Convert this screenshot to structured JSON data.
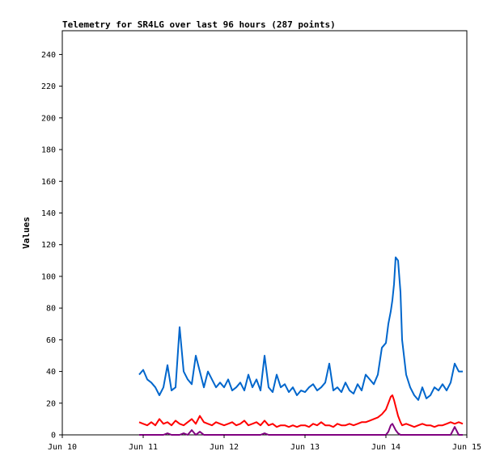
{
  "chart_data": {
    "type": "line",
    "title": "Telemetry for SR4LG over last 96 hours (287 points)",
    "xlabel": "",
    "ylabel": "Values",
    "x_ticks": [
      "Jun 10",
      "Jun 11",
      "Jun 12",
      "Jun 13",
      "Jun 14",
      "Jun 15"
    ],
    "y_ticks": [
      0,
      20,
      40,
      60,
      80,
      100,
      120,
      140,
      160,
      180,
      200,
      220,
      240
    ],
    "xlim": [
      0,
      5
    ],
    "ylim": [
      0,
      255
    ],
    "grid": false,
    "legend": "none",
    "series": [
      {
        "color": "#0066cc",
        "x": [
          0.95,
          1.0,
          1.05,
          1.1,
          1.15,
          1.2,
          1.25,
          1.3,
          1.35,
          1.4,
          1.45,
          1.5,
          1.55,
          1.6,
          1.65,
          1.7,
          1.75,
          1.8,
          1.85,
          1.9,
          1.95,
          2.0,
          2.05,
          2.1,
          2.15,
          2.2,
          2.25,
          2.3,
          2.35,
          2.4,
          2.45,
          2.5,
          2.55,
          2.6,
          2.65,
          2.7,
          2.75,
          2.8,
          2.85,
          2.9,
          2.95,
          3.0,
          3.05,
          3.1,
          3.15,
          3.2,
          3.25,
          3.3,
          3.35,
          3.4,
          3.45,
          3.5,
          3.55,
          3.6,
          3.65,
          3.7,
          3.75,
          3.8,
          3.85,
          3.9,
          3.95,
          4.0,
          4.03,
          4.06,
          4.08,
          4.1,
          4.12,
          4.15,
          4.18,
          4.2,
          4.25,
          4.3,
          4.35,
          4.4,
          4.45,
          4.5,
          4.55,
          4.6,
          4.65,
          4.7,
          4.75,
          4.8,
          4.85,
          4.9,
          4.95
        ],
        "y": [
          38,
          41,
          35,
          33,
          30,
          25,
          30,
          44,
          28,
          30,
          68,
          40,
          35,
          32,
          50,
          40,
          30,
          40,
          35,
          30,
          33,
          30,
          35,
          28,
          30,
          33,
          28,
          38,
          30,
          35,
          28,
          50,
          30,
          27,
          38,
          30,
          32,
          27,
          30,
          25,
          28,
          27,
          30,
          32,
          28,
          30,
          33,
          45,
          28,
          30,
          27,
          33,
          28,
          26,
          32,
          28,
          38,
          35,
          32,
          38,
          55,
          58,
          70,
          78,
          85,
          95,
          112,
          110,
          90,
          60,
          38,
          30,
          25,
          22,
          30,
          23,
          25,
          30,
          28,
          32,
          28,
          33,
          45,
          40,
          40
        ]
      },
      {
        "color": "#ff0000",
        "x": [
          0.95,
          1.0,
          1.05,
          1.1,
          1.15,
          1.2,
          1.25,
          1.3,
          1.35,
          1.4,
          1.45,
          1.5,
          1.55,
          1.6,
          1.65,
          1.7,
          1.75,
          1.8,
          1.85,
          1.9,
          1.95,
          2.0,
          2.05,
          2.1,
          2.15,
          2.2,
          2.25,
          2.3,
          2.35,
          2.4,
          2.45,
          2.5,
          2.55,
          2.6,
          2.65,
          2.7,
          2.75,
          2.8,
          2.85,
          2.9,
          2.95,
          3.0,
          3.05,
          3.1,
          3.15,
          3.2,
          3.25,
          3.3,
          3.35,
          3.4,
          3.45,
          3.5,
          3.55,
          3.6,
          3.65,
          3.7,
          3.75,
          3.8,
          3.85,
          3.9,
          3.95,
          4.0,
          4.03,
          4.06,
          4.08,
          4.1,
          4.12,
          4.15,
          4.18,
          4.2,
          4.25,
          4.3,
          4.35,
          4.4,
          4.45,
          4.5,
          4.55,
          4.6,
          4.65,
          4.7,
          4.75,
          4.8,
          4.85,
          4.9,
          4.95
        ],
        "y": [
          8,
          7,
          6,
          8,
          6,
          10,
          7,
          8,
          6,
          9,
          7,
          6,
          8,
          10,
          7,
          12,
          8,
          7,
          6,
          8,
          7,
          6,
          7,
          8,
          6,
          7,
          9,
          6,
          7,
          8,
          6,
          9,
          6,
          7,
          5,
          6,
          6,
          5,
          6,
          5,
          6,
          6,
          5,
          7,
          6,
          8,
          6,
          6,
          5,
          7,
          6,
          6,
          7,
          6,
          7,
          8,
          8,
          9,
          10,
          11,
          13,
          16,
          20,
          24,
          25,
          22,
          18,
          12,
          8,
          6,
          7,
          6,
          5,
          6,
          7,
          6,
          6,
          5,
          6,
          6,
          7,
          8,
          7,
          8,
          7
        ]
      },
      {
        "color": "#800080",
        "x": [
          0.95,
          1.0,
          1.05,
          1.1,
          1.15,
          1.2,
          1.25,
          1.3,
          1.35,
          1.4,
          1.45,
          1.5,
          1.55,
          1.6,
          1.65,
          1.7,
          1.75,
          1.8,
          1.85,
          1.9,
          1.95,
          2.0,
          2.05,
          2.1,
          2.15,
          2.2,
          2.25,
          2.3,
          2.35,
          2.4,
          2.45,
          2.5,
          2.55,
          2.6,
          2.65,
          2.7,
          2.75,
          2.8,
          2.85,
          2.9,
          2.95,
          3.0,
          3.05,
          3.1,
          3.15,
          3.2,
          3.25,
          3.3,
          3.35,
          3.4,
          3.45,
          3.5,
          3.55,
          3.6,
          3.65,
          3.7,
          3.75,
          3.8,
          3.85,
          3.9,
          3.95,
          4.0,
          4.03,
          4.06,
          4.08,
          4.1,
          4.12,
          4.15,
          4.18,
          4.2,
          4.25,
          4.3,
          4.35,
          4.4,
          4.45,
          4.5,
          4.55,
          4.6,
          4.65,
          4.7,
          4.75,
          4.8,
          4.85,
          4.9,
          4.95
        ],
        "y": [
          0,
          0,
          0,
          0,
          0,
          0,
          0,
          1,
          0,
          0,
          0,
          1,
          0,
          3,
          0,
          2,
          0,
          0,
          0,
          0,
          0,
          0,
          0,
          0,
          0,
          0,
          0,
          0,
          0,
          0,
          0,
          1,
          0,
          0,
          0,
          0,
          0,
          0,
          0,
          0,
          0,
          0,
          0,
          0,
          0,
          0,
          0,
          0,
          0,
          0,
          0,
          0,
          0,
          0,
          0,
          0,
          0,
          0,
          0,
          0,
          0,
          0,
          2,
          6,
          7,
          5,
          3,
          1,
          0,
          0,
          0,
          0,
          0,
          0,
          0,
          0,
          0,
          0,
          0,
          0,
          0,
          0,
          5,
          0,
          0
        ]
      }
    ]
  }
}
